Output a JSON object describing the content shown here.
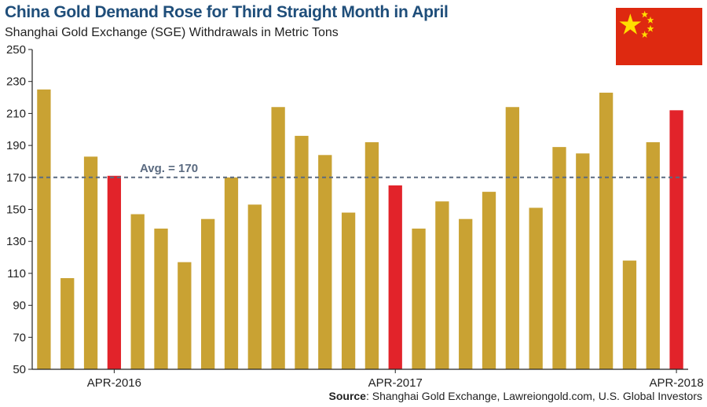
{
  "header": {
    "title": "China Gold Demand Rose for Third Straight Month in April",
    "subtitle": "Shanghai Gold Exchange (SGE) Withdrawals in Metric Tons"
  },
  "source": {
    "label": "Source",
    "text": ": Shanghai Gold Exchange, Lawreiongold.com, U.S. Global Investors"
  },
  "flag": {
    "icon": "china-flag-icon",
    "red": "#de2910",
    "yellow": "#ffde00"
  },
  "chart_data": {
    "type": "bar",
    "title": "China Gold Demand Rose for Third Straight Month in April",
    "subtitle": "Shanghai Gold Exchange (SGE) Withdrawals in Metric Tons",
    "ylim": [
      50,
      250
    ],
    "yticks": [
      50,
      70,
      90,
      110,
      130,
      150,
      170,
      190,
      210,
      230,
      250
    ],
    "grid": false,
    "values": [
      225,
      107,
      183,
      171,
      147,
      138,
      117,
      144,
      170,
      153,
      214,
      196,
      184,
      148,
      192,
      165,
      138,
      155,
      144,
      161,
      214,
      151,
      189,
      185,
      223,
      118,
      192,
      212
    ],
    "highlight_indices": [
      3,
      15,
      27
    ],
    "x_tick_labels": [
      {
        "index": 3,
        "label": "APR-2016"
      },
      {
        "index": 15,
        "label": "APR-2017"
      },
      {
        "index": 27,
        "label": "APR-2018"
      }
    ],
    "bar_color": "#c9a233",
    "highlight_color": "#e2232a",
    "average": {
      "value": 170,
      "label": "Avg. = 170",
      "color": "#5a6a80"
    }
  }
}
